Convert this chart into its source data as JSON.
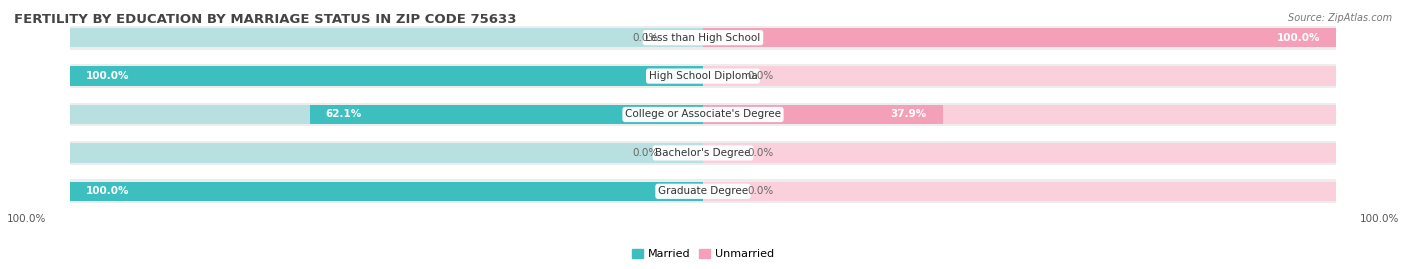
{
  "title": "FERTILITY BY EDUCATION BY MARRIAGE STATUS IN ZIP CODE 75633",
  "source": "Source: ZipAtlas.com",
  "categories": [
    "Less than High School",
    "High School Diploma",
    "College or Associate's Degree",
    "Bachelor's Degree",
    "Graduate Degree"
  ],
  "married": [
    0.0,
    100.0,
    62.1,
    0.0,
    100.0
  ],
  "unmarried": [
    100.0,
    0.0,
    37.9,
    0.0,
    0.0
  ],
  "married_color": "#3DBFBF",
  "unmarried_color": "#F4A0B8",
  "married_light": "#B8E0E0",
  "unmarried_light": "#FAD0DC",
  "bg_strip_color": "#EDEDED",
  "background_color": "#FFFFFF",
  "title_fontsize": 9.5,
  "label_fontsize": 7.5,
  "value_fontsize": 7.5,
  "bar_height": 0.62,
  "legend_married": "Married",
  "legend_unmarried": "Unmarried",
  "axis_label_left": "100.0%",
  "axis_label_right": "100.0%",
  "xlim": [
    -110,
    110
  ],
  "source_fontsize": 7,
  "title_color": "#444444",
  "value_color_inside": "#FFFFFF",
  "value_color_outside": "#666666"
}
